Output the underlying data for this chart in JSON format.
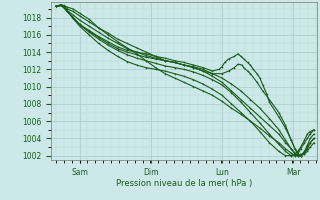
{
  "background_color": "#cce8e8",
  "plot_bg_color": "#cce8e8",
  "grid_major_color": "#aacccc",
  "grid_minor_color": "#bbdddd",
  "line_color": "#1a5c1a",
  "xlabel": "Pression niveau de la mer( hPa )",
  "x_tick_positions": [
    0.25,
    1.0,
    1.75,
    2.5
  ],
  "x_tick_labels": [
    "Sam",
    "Dim",
    "Lun",
    "Mar"
  ],
  "ylim": [
    1001.5,
    1019.8
  ],
  "xlim": [
    -0.05,
    2.75
  ],
  "y_ticks": [
    1002,
    1004,
    1006,
    1008,
    1010,
    1012,
    1014,
    1016,
    1018
  ],
  "series": [
    {
      "x": [
        0.0,
        0.05,
        0.08,
        0.12,
        0.18,
        0.25,
        0.35,
        0.45,
        0.55,
        0.65,
        0.75,
        0.85,
        0.95,
        1.05,
        1.15,
        1.25,
        1.35,
        1.45,
        1.55,
        1.65,
        1.75,
        1.85,
        1.95,
        2.05,
        2.15,
        2.25,
        2.35,
        2.42,
        2.48,
        2.52,
        2.55,
        2.58
      ],
      "y": [
        1019.3,
        1019.5,
        1019.4,
        1019.2,
        1019.0,
        1018.5,
        1017.8,
        1016.8,
        1016.0,
        1015.2,
        1014.5,
        1013.8,
        1013.0,
        1012.2,
        1011.5,
        1011.0,
        1010.5,
        1010.0,
        1009.5,
        1009.0,
        1008.3,
        1007.5,
        1006.8,
        1006.0,
        1005.2,
        1004.3,
        1003.5,
        1002.8,
        1002.3,
        1002.0,
        1002.0,
        1002.2
      ]
    },
    {
      "x": [
        0.0,
        0.05,
        0.08,
        0.12,
        0.18,
        0.25,
        0.35,
        0.45,
        0.55,
        0.65,
        0.75,
        0.85,
        0.95,
        1.05,
        1.15,
        1.25,
        1.35,
        1.45,
        1.55,
        1.65,
        1.75,
        1.85,
        1.95,
        2.05,
        2.15,
        2.25,
        2.35,
        2.42,
        2.48,
        2.52,
        2.55,
        2.58,
        2.62,
        2.65,
        2.68,
        2.72
      ],
      "y": [
        1019.3,
        1019.4,
        1019.3,
        1019.0,
        1018.7,
        1018.2,
        1017.5,
        1016.8,
        1016.2,
        1015.5,
        1015.0,
        1014.5,
        1014.0,
        1013.5,
        1013.0,
        1012.8,
        1012.5,
        1012.3,
        1012.0,
        1011.5,
        1011.0,
        1010.3,
        1009.5,
        1008.5,
        1007.5,
        1006.3,
        1005.0,
        1003.8,
        1002.8,
        1002.2,
        1002.0,
        1002.0,
        1002.5,
        1003.2,
        1004.0,
        1004.5
      ]
    },
    {
      "x": [
        0.0,
        0.05,
        0.08,
        0.12,
        0.18,
        0.25,
        0.35,
        0.45,
        0.55,
        0.65,
        0.75,
        0.85,
        0.95,
        1.05,
        1.15,
        1.25,
        1.35,
        1.45,
        1.55,
        1.65,
        1.75,
        1.85,
        1.95,
        2.05,
        2.15,
        2.25,
        2.35,
        2.42,
        2.48,
        2.52,
        2.55,
        2.58,
        2.62,
        2.65,
        2.68,
        2.72
      ],
      "y": [
        1019.3,
        1019.4,
        1019.2,
        1018.8,
        1018.3,
        1017.7,
        1017.0,
        1016.3,
        1015.6,
        1015.0,
        1014.4,
        1014.0,
        1013.6,
        1013.3,
        1013.0,
        1012.8,
        1012.5,
        1012.2,
        1011.8,
        1011.2,
        1010.5,
        1009.5,
        1008.5,
        1007.5,
        1006.5,
        1005.5,
        1004.5,
        1003.5,
        1002.8,
        1002.3,
        1002.0,
        1002.0,
        1002.3,
        1002.8,
        1003.5,
        1004.0
      ]
    },
    {
      "x": [
        0.0,
        0.05,
        0.08,
        0.12,
        0.18,
        0.25,
        0.35,
        0.45,
        0.55,
        0.65,
        0.75,
        0.85,
        0.95,
        1.05,
        1.15,
        1.25,
        1.35,
        1.45,
        1.55,
        1.65,
        1.72,
        1.75,
        1.78,
        1.82,
        1.88,
        1.92,
        1.95,
        1.98,
        2.02,
        2.05,
        2.08,
        2.12,
        2.15,
        2.18,
        2.22,
        2.25,
        2.35,
        2.42,
        2.48,
        2.52,
        2.55,
        2.58,
        2.62,
        2.65,
        2.68,
        2.72
      ],
      "y": [
        1019.3,
        1019.4,
        1019.2,
        1018.7,
        1018.0,
        1017.2,
        1016.5,
        1015.8,
        1015.2,
        1014.6,
        1014.2,
        1014.0,
        1013.8,
        1013.5,
        1013.3,
        1013.0,
        1012.8,
        1012.5,
        1012.2,
        1011.8,
        1012.0,
        1012.3,
        1012.8,
        1013.2,
        1013.5,
        1013.8,
        1013.5,
        1013.2,
        1012.8,
        1012.5,
        1012.0,
        1011.5,
        1011.0,
        1010.2,
        1009.2,
        1008.2,
        1006.5,
        1005.2,
        1003.8,
        1002.8,
        1002.2,
        1002.0,
        1002.2,
        1002.5,
        1003.0,
        1003.5
      ]
    },
    {
      "x": [
        0.0,
        0.05,
        0.08,
        0.12,
        0.18,
        0.25,
        0.35,
        0.45,
        0.55,
        0.65,
        0.75,
        0.85,
        0.95,
        1.05,
        1.15,
        1.25,
        1.35,
        1.45,
        1.55,
        1.65,
        1.75,
        1.82,
        1.88,
        1.92,
        1.96,
        1.98,
        2.02,
        2.05,
        2.12,
        2.18,
        2.25,
        2.35,
        2.42,
        2.48,
        2.52,
        2.55,
        2.58,
        2.62,
        2.65,
        2.68,
        2.72
      ],
      "y": [
        1019.3,
        1019.4,
        1019.2,
        1018.7,
        1018.0,
        1017.2,
        1016.4,
        1015.7,
        1015.0,
        1014.4,
        1014.0,
        1013.7,
        1013.4,
        1013.2,
        1013.0,
        1012.8,
        1012.5,
        1012.2,
        1011.8,
        1011.5,
        1011.5,
        1011.8,
        1012.2,
        1012.6,
        1012.5,
        1012.2,
        1011.8,
        1011.5,
        1010.5,
        1009.5,
        1008.5,
        1007.0,
        1005.5,
        1003.8,
        1002.8,
        1002.2,
        1002.0,
        1002.2,
        1003.0,
        1003.5,
        1004.0
      ]
    },
    {
      "x": [
        0.0,
        0.05,
        0.08,
        0.12,
        0.18,
        0.25,
        0.35,
        0.45,
        0.55,
        0.65,
        0.75,
        0.85,
        0.95,
        1.05,
        1.15,
        1.25,
        1.35,
        1.45,
        1.55,
        1.65,
        1.75,
        1.85,
        1.95,
        2.05,
        2.15,
        2.25,
        2.35,
        2.42,
        2.48,
        2.52,
        2.55,
        2.58,
        2.62,
        2.65,
        2.68,
        2.72
      ],
      "y": [
        1019.3,
        1019.4,
        1019.2,
        1018.7,
        1018.0,
        1017.2,
        1016.3,
        1015.5,
        1014.8,
        1014.2,
        1013.7,
        1013.3,
        1013.0,
        1012.7,
        1012.4,
        1012.2,
        1012.0,
        1011.7,
        1011.3,
        1010.8,
        1010.2,
        1009.3,
        1008.2,
        1007.0,
        1005.8,
        1004.5,
        1003.3,
        1002.5,
        1002.0,
        1002.0,
        1002.2,
        1002.8,
        1003.5,
        1004.0,
        1004.5,
        1005.0
      ]
    },
    {
      "x": [
        0.0,
        0.05,
        0.08,
        0.12,
        0.18,
        0.25,
        0.35,
        0.45,
        0.55,
        0.65,
        0.75,
        0.85,
        0.95,
        1.05,
        1.15,
        1.25,
        1.35,
        1.45,
        1.55,
        1.65,
        1.75,
        1.85,
        1.95,
        2.05,
        2.15,
        2.25,
        2.35,
        2.42,
        2.48,
        2.52,
        2.55,
        2.58,
        2.62,
        2.65,
        2.68,
        2.72
      ],
      "y": [
        1019.3,
        1019.4,
        1019.2,
        1018.7,
        1017.9,
        1017.0,
        1016.0,
        1015.0,
        1014.2,
        1013.5,
        1012.9,
        1012.5,
        1012.2,
        1012.0,
        1011.8,
        1011.5,
        1011.2,
        1010.8,
        1010.3,
        1009.7,
        1009.0,
        1008.0,
        1007.0,
        1006.0,
        1004.8,
        1003.5,
        1002.5,
        1002.0,
        1002.0,
        1002.2,
        1002.5,
        1003.0,
        1003.8,
        1004.5,
        1004.8,
        1005.0
      ]
    }
  ]
}
